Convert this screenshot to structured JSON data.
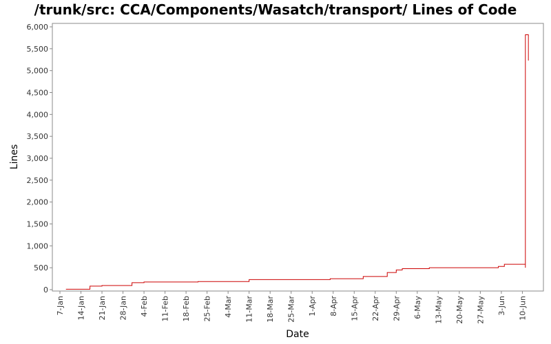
{
  "chart_data": {
    "type": "line",
    "title": "/trunk/src: CCA/Components/Wasatch/transport/ Lines of Code",
    "xlabel": "Date",
    "ylabel": "Lines",
    "ylim": [
      0,
      6100
    ],
    "xlim": [
      "2007-01-05",
      "2007-06-16"
    ],
    "yticks": [
      0,
      500,
      1000,
      1500,
      2000,
      2500,
      3000,
      3500,
      4000,
      4500,
      5000,
      5500,
      6000
    ],
    "ytick_labels": [
      "0",
      "500",
      "1,000",
      "1,500",
      "2,000",
      "2,500",
      "3,000",
      "3,500",
      "4,000",
      "4,500",
      "5,000",
      "5,500",
      "6,000"
    ],
    "xticks": [
      "2007-01-07",
      "2007-01-14",
      "2007-01-21",
      "2007-01-28",
      "2007-02-04",
      "2007-02-11",
      "2007-02-18",
      "2007-02-25",
      "2007-03-04",
      "2007-03-11",
      "2007-03-18",
      "2007-03-25",
      "2007-04-01",
      "2007-04-08",
      "2007-04-15",
      "2007-04-22",
      "2007-04-29",
      "2007-05-06",
      "2007-05-13",
      "2007-05-20",
      "2007-05-27",
      "2007-06-03",
      "2007-06-10"
    ],
    "xtick_labels": [
      "7-Jan",
      "14-Jan",
      "21-Jan",
      "28-Jan",
      "4-Feb",
      "11-Feb",
      "18-Feb",
      "25-Feb",
      "4-Mar",
      "11-Mar",
      "18-Mar",
      "25-Mar",
      "1-Apr",
      "8-Apr",
      "15-Apr",
      "22-Apr",
      "29-Apr",
      "6-May",
      "13-May",
      "20-May",
      "27-May",
      "3-Jun",
      "10-Jun"
    ],
    "grid": false,
    "series": [
      {
        "color": "#cc0000",
        "step": true,
        "x": [
          "2007-01-09",
          "2007-01-17",
          "2007-01-21",
          "2007-01-31",
          "2007-02-04",
          "2007-02-22",
          "2007-03-11",
          "2007-04-07",
          "2007-04-18",
          "2007-04-26",
          "2007-04-29",
          "2007-05-01",
          "2007-05-03",
          "2007-05-10",
          "2007-06-02",
          "2007-06-04",
          "2007-06-11",
          "2007-06-11",
          "2007-06-12"
        ],
        "y": [
          10,
          80,
          95,
          160,
          175,
          185,
          230,
          250,
          300,
          390,
          450,
          480,
          480,
          500,
          530,
          580,
          500,
          5820,
          5230
        ]
      }
    ]
  }
}
